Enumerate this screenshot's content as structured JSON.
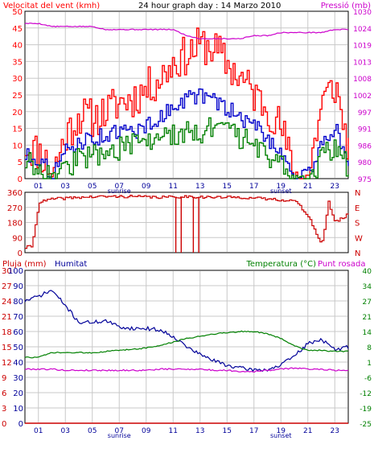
{
  "header": {
    "wind_title": "Velocitat del vent (kmh)",
    "graph_title": "24 hour graph day : 14 Marzo 2010",
    "pressure_title": "Pressió (mb)"
  },
  "bottom_header": {
    "rain_label": "Pluja (mm)",
    "humidity_label": "Humitat",
    "temp_label": "Temperatura (°C)",
    "dew_label": "Punt rosada"
  },
  "x_labels": [
    "01",
    "03",
    "05",
    "07",
    "09",
    "11",
    "13",
    "15",
    "17",
    "19",
    "21",
    "23"
  ],
  "sunrise_label": "sunrise",
  "sunset_label": "sunset",
  "colors": {
    "wind_gust": "#ff0000",
    "wind_avg": "#0000cc",
    "wind_min": "#008000",
    "pressure": "#cc00cc",
    "direction": "#cc0000",
    "humidity": "#000099",
    "temperature": "#008000",
    "dewpoint": "#cc00cc",
    "rain": "#cc0000",
    "grid": "#c8c8c8"
  },
  "chart_data": [
    {
      "type": "line",
      "title": "24 hour graph day : 14 Marzo 2010",
      "ylabel": "Velocitat del vent (kmh)",
      "y2label": "Pressió (mb)",
      "ylim": [
        0,
        50
      ],
      "y_ticks": [
        "0",
        "5",
        "10",
        "15",
        "20",
        "25",
        "30",
        "35",
        "40",
        "45",
        "50"
      ],
      "y2lim": [
        975,
        1030
      ],
      "y2_ticks": [
        "975",
        "980",
        "986",
        "991",
        "997",
        "1002",
        "1008",
        "1013",
        "1019",
        "1024",
        "1030"
      ],
      "x": [
        0,
        1,
        2,
        3,
        4,
        5,
        6,
        7,
        8,
        9,
        10,
        11,
        12,
        13,
        14,
        15,
        16,
        17,
        18,
        19,
        20,
        21,
        22,
        23,
        24
      ],
      "series": [
        {
          "values": [
            10,
            8,
            2,
            13,
            19,
            18,
            20,
            23,
            24,
            27,
            30,
            35,
            37,
            40,
            39,
            34,
            30,
            25,
            21,
            15,
            0,
            1,
            23,
            28,
            8
          ]
        },
        {
          "values": [
            7,
            6,
            1,
            8,
            11,
            12,
            13,
            14,
            14,
            16,
            18,
            22,
            24,
            25,
            23,
            21,
            18,
            16,
            12,
            8,
            0,
            1,
            11,
            15,
            6
          ]
        },
        {
          "values": [
            5,
            4,
            0,
            3,
            6,
            7,
            8,
            9,
            10,
            11,
            12,
            13,
            14,
            14,
            15,
            14,
            12,
            10,
            7,
            4,
            0,
            0,
            6,
            10,
            3
          ]
        },
        {
          "values": [
            1026,
            1026,
            1025,
            1025,
            1025,
            1025,
            1024,
            1024,
            1024,
            1024,
            1024,
            1024,
            1022,
            1021,
            1021,
            1021,
            1021,
            1022,
            1022,
            1023,
            1023,
            1023,
            1023,
            1024,
            1024
          ]
        }
      ]
    },
    {
      "type": "line",
      "ylabel": "",
      "ylim": [
        0,
        360
      ],
      "y_ticks": [
        "0",
        "90",
        "180",
        "270",
        "360"
      ],
      "y2_ticks": [
        "N",
        "W",
        "S",
        "E",
        "N"
      ],
      "x": [
        0,
        0.5,
        1,
        2,
        4,
        6,
        8,
        10,
        12,
        14,
        16,
        18,
        20,
        21,
        22,
        22.5,
        23,
        24
      ],
      "series": [
        {
          "values": [
            30,
            40,
            300,
            320,
            330,
            335,
            335,
            330,
            335,
            330,
            330,
            320,
            310,
            220,
            40,
            300,
            180,
            230
          ]
        }
      ]
    },
    {
      "type": "line",
      "ylabel": "Pluja (mm)",
      "y2label": "Temperatura (°C)",
      "ylim": [
        0,
        100
      ],
      "y_ticks_rain": [
        "0",
        "3",
        "6",
        "9",
        "12",
        "15",
        "18",
        "21",
        "24",
        "27",
        "30"
      ],
      "y_ticks_humidity": [
        "0",
        "10",
        "20",
        "30",
        "40",
        "50",
        "60",
        "70",
        "80",
        "90",
        "100"
      ],
      "y2lim": [
        -25,
        40
      ],
      "y2_ticks": [
        "-25",
        "-19",
        "-12",
        "-6",
        "1",
        "8",
        "14",
        "21",
        "27",
        "34",
        "40"
      ],
      "x": [
        0,
        1,
        2,
        3,
        4,
        5,
        6,
        7,
        8,
        9,
        10,
        11,
        12,
        13,
        14,
        15,
        16,
        17,
        18,
        19,
        20,
        21,
        22,
        23,
        24
      ],
      "series": [
        {
          "name": "Humitat",
          "values": [
            80,
            83,
            87,
            77,
            66,
            66,
            67,
            63,
            62,
            62,
            61,
            57,
            50,
            45,
            41,
            38,
            36,
            35,
            35,
            38,
            44,
            52,
            55,
            48,
            50
          ]
        },
        {
          "name": "Temperatura (°C)",
          "values": [
            3,
            3,
            5,
            5,
            5,
            5,
            5.5,
            6,
            6.5,
            7,
            8,
            9.5,
            11,
            12,
            13,
            13.5,
            14,
            14,
            13,
            11,
            8,
            6,
            6,
            5.5,
            5.5
          ]
        },
        {
          "name": "Punt rosada",
          "values": [
            -2,
            -2,
            -2,
            -2.5,
            -2.5,
            -2.5,
            -2.5,
            -2.5,
            -2.5,
            -2.5,
            -2,
            -2,
            -2,
            -2,
            -2.5,
            -2.5,
            -3,
            -3,
            -2.5,
            -2,
            -1.5,
            -2,
            -2,
            -2.5,
            -2.5
          ]
        },
        {
          "name": "Pluja (mm)",
          "values": [
            0,
            0,
            0,
            0,
            0,
            0,
            0,
            0,
            0,
            0,
            0,
            0,
            0,
            0,
            0,
            0,
            0,
            0,
            0,
            0,
            0,
            0,
            0,
            0,
            0
          ]
        }
      ]
    }
  ]
}
